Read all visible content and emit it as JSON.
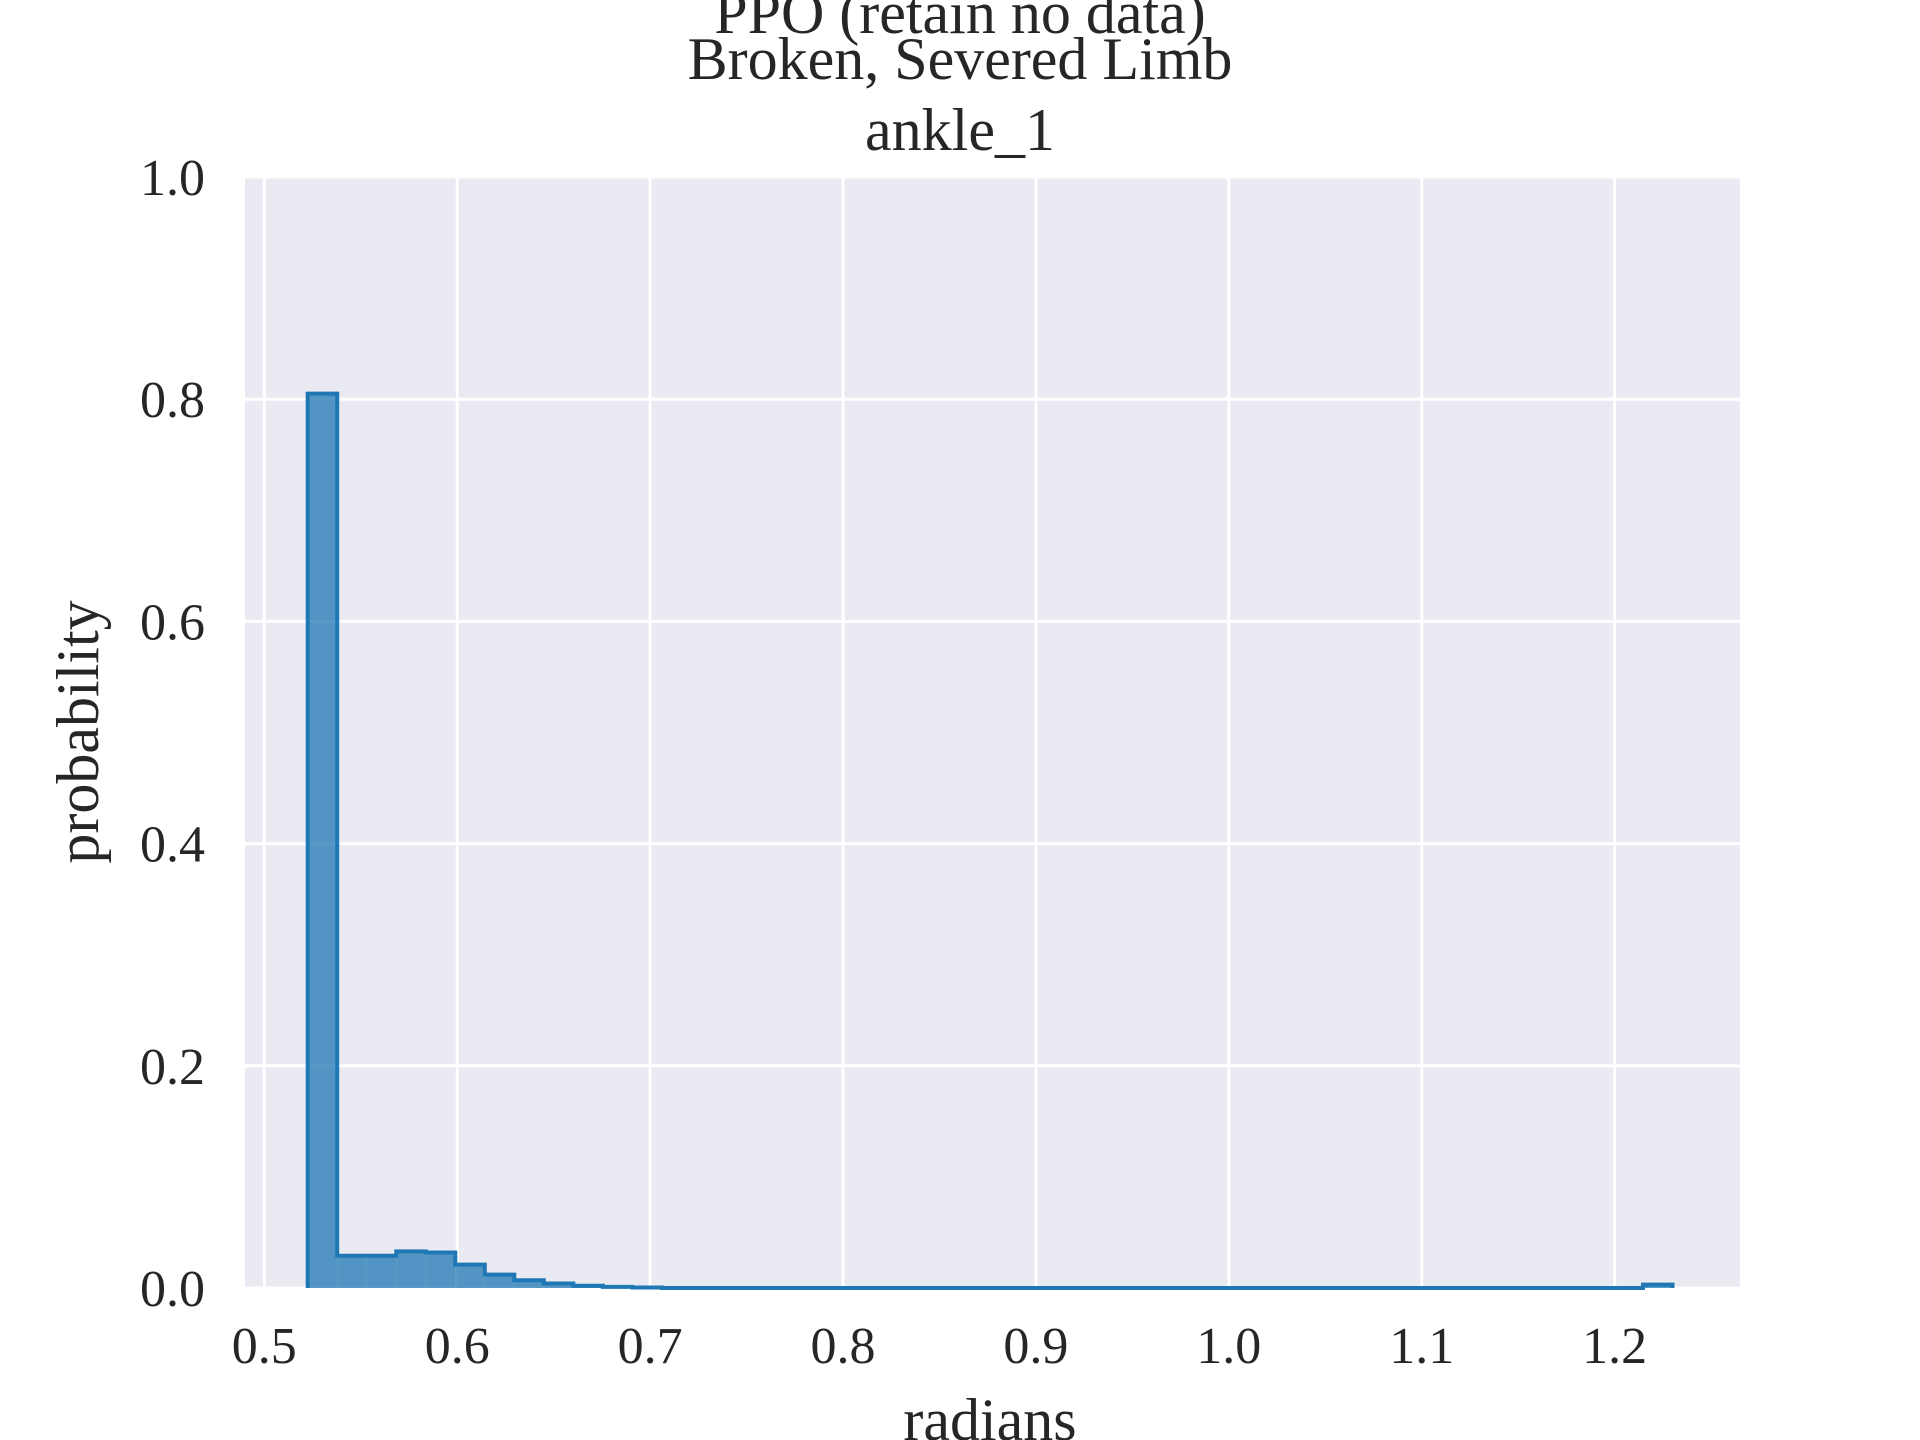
{
  "chart_data": {
    "type": "histogram",
    "title_lines": [
      "PPO (retain no data)",
      "Broken, Severed Limb",
      "ankle_1"
    ],
    "xlabel": "radians",
    "ylabel": "probability",
    "xlim": [
      0.49,
      1.265
    ],
    "ylim": [
      0,
      1.0
    ],
    "xticks": [
      0.5,
      0.6,
      0.7,
      0.8,
      0.9,
      1.0,
      1.1,
      1.2
    ],
    "xtick_labels": [
      "0.5",
      "0.6",
      "0.7",
      "0.8",
      "0.9",
      "1.0",
      "1.1",
      "1.2"
    ],
    "yticks": [
      0.0,
      0.2,
      0.4,
      0.6,
      0.8,
      1.0
    ],
    "ytick_labels": [
      "0.0",
      "0.2",
      "0.4",
      "0.6",
      "0.8",
      "1.0"
    ],
    "grid": true,
    "bin_edges": [
      0.5225,
      0.5378,
      0.5531,
      0.5684,
      0.5837,
      0.599,
      0.6143,
      0.6296,
      0.6449,
      0.6602,
      0.6755,
      0.6908,
      0.7061,
      1.2147,
      1.23
    ],
    "bins": [
      {
        "x0": 0.5225,
        "x1": 0.5378,
        "value": 0.805
      },
      {
        "x0": 0.5378,
        "x1": 0.5531,
        "value": 0.029
      },
      {
        "x0": 0.5531,
        "x1": 0.5684,
        "value": 0.029
      },
      {
        "x0": 0.5684,
        "x1": 0.5837,
        "value": 0.033
      },
      {
        "x0": 0.5837,
        "x1": 0.599,
        "value": 0.032
      },
      {
        "x0": 0.599,
        "x1": 0.6143,
        "value": 0.021
      },
      {
        "x0": 0.6143,
        "x1": 0.6296,
        "value": 0.012
      },
      {
        "x0": 0.6296,
        "x1": 0.6449,
        "value": 0.007
      },
      {
        "x0": 0.6449,
        "x1": 0.6602,
        "value": 0.004
      },
      {
        "x0": 0.6602,
        "x1": 0.6755,
        "value": 0.002
      },
      {
        "x0": 0.6755,
        "x1": 0.6908,
        "value": 0.001
      },
      {
        "x0": 0.6908,
        "x1": 0.7061,
        "value": 0.0005
      },
      {
        "x0": 1.2147,
        "x1": 1.23,
        "value": 0.003
      }
    ],
    "colors": {
      "plot_bg": "#eaeaf2",
      "grid": "#ffffff",
      "bar_fill": "#1f77b4",
      "bar_fill_opacity": 0.75,
      "bar_edge": "#1f77b4",
      "text": "#262626"
    }
  }
}
